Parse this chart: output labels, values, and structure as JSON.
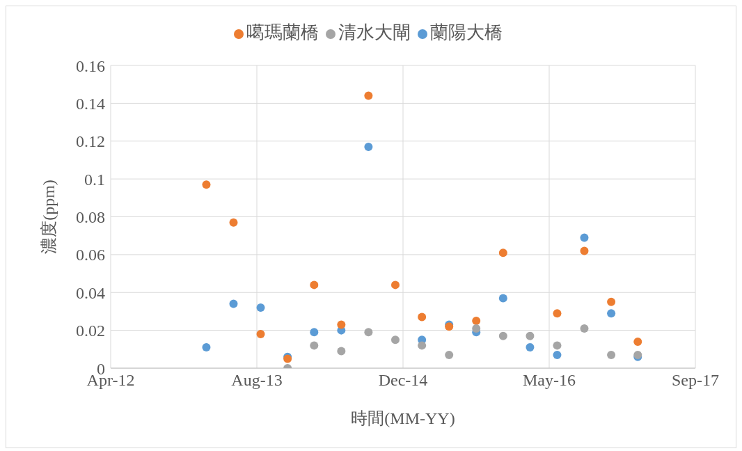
{
  "chart_data": {
    "type": "scatter",
    "xlabel": "時間(MM-YY)",
    "ylabel": "濃度(ppm)",
    "x": [
      "2013-03",
      "2013-06",
      "2013-09",
      "2013-12",
      "2014-03",
      "2014-06",
      "2014-09",
      "2014-12",
      "2015-03",
      "2015-06",
      "2015-09",
      "2015-12",
      "2016-03",
      "2016-06",
      "2016-09",
      "2016-12",
      "2017-03"
    ],
    "series": [
      {
        "name": "蘭陽大橋",
        "color": "#5b9bd5",
        "values": [
          0.011,
          0.034,
          0.032,
          0.006,
          0.019,
          0.02,
          0.117,
          null,
          0.015,
          0.023,
          0.019,
          0.037,
          0.011,
          0.007,
          0.069,
          0.029,
          0.006
        ]
      },
      {
        "name": "噶瑪蘭橋",
        "color": "#ed7d31",
        "values": [
          0.097,
          0.077,
          0.018,
          0.005,
          0.044,
          0.023,
          0.144,
          0.044,
          0.027,
          0.022,
          0.025,
          0.061,
          null,
          0.029,
          0.062,
          0.035,
          0.014
        ]
      },
      {
        "name": "清水大閘",
        "color": "#a5a5a5",
        "values": [
          null,
          null,
          null,
          0,
          0.012,
          0.009,
          0.019,
          0.015,
          0.012,
          0.007,
          0.021,
          0.017,
          0.017,
          0.012,
          0.021,
          0.007,
          0.007
        ]
      }
    ],
    "xlim": [
      "2012-04-11",
      "2017-09-12"
    ],
    "xticks": [
      {
        "value": "2012-04-11",
        "label": "Apr-12"
      },
      {
        "value": "2013-08-19",
        "label": "Aug-13"
      },
      {
        "value": "2014-12-27",
        "label": "Dec-14"
      },
      {
        "value": "2016-05-05",
        "label": "May-16"
      },
      {
        "value": "2017-09-12",
        "label": "Sep-17"
      }
    ],
    "ylim": [
      0,
      0.16
    ],
    "yticks": [
      0,
      0.02,
      0.04,
      0.06,
      0.08,
      0.1,
      0.12,
      0.14,
      0.16
    ],
    "grid": true,
    "legend": "top",
    "marker": "circle"
  }
}
